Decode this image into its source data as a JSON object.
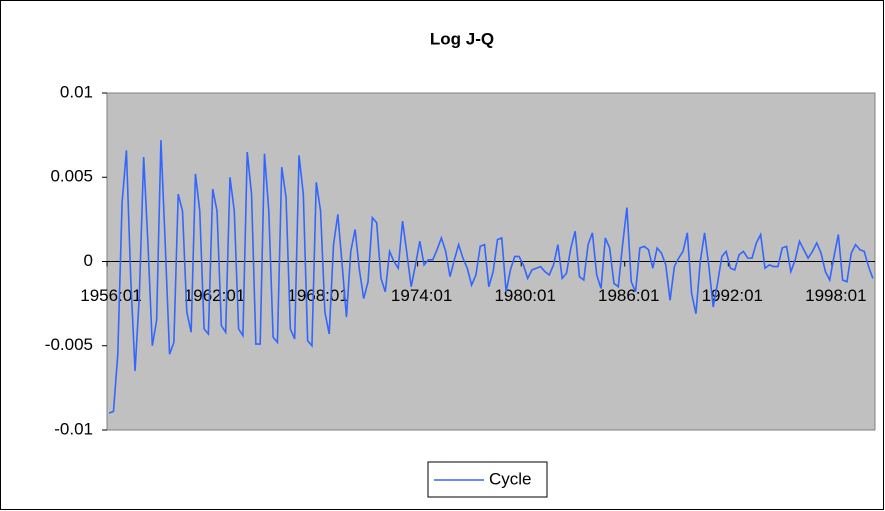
{
  "chart_data": {
    "type": "line",
    "title": "Log J-Q",
    "categories": [
      "1956:01",
      null,
      null,
      null,
      null,
      null,
      null,
      null,
      null,
      null,
      null,
      null,
      null,
      null,
      null,
      null,
      null,
      null,
      null,
      null,
      null,
      null,
      null,
      null,
      "1962:01",
      null,
      null,
      null,
      null,
      null,
      null,
      null,
      null,
      null,
      null,
      null,
      null,
      null,
      null,
      null,
      null,
      null,
      null,
      null,
      null,
      null,
      null,
      null,
      "1968:01",
      null,
      null,
      null,
      null,
      null,
      null,
      null,
      null,
      null,
      null,
      null,
      null,
      null,
      null,
      null,
      null,
      null,
      null,
      null,
      null,
      null,
      null,
      null,
      "1974:01",
      null,
      null,
      null,
      null,
      null,
      null,
      null,
      null,
      null,
      null,
      null,
      null,
      null,
      null,
      null,
      null,
      null,
      null,
      null,
      null,
      null,
      null,
      null,
      "1980:01",
      null,
      null,
      null,
      null,
      null,
      null,
      null,
      null,
      null,
      null,
      null,
      null,
      null,
      null,
      null,
      null,
      null,
      null,
      null,
      null,
      null,
      null,
      null,
      "1986:01",
      null,
      null,
      null,
      null,
      null,
      null,
      null,
      null,
      null,
      null,
      null,
      null,
      null,
      null,
      null,
      null,
      null,
      null,
      null,
      null,
      null,
      null,
      null,
      "1992:01",
      null,
      null,
      null,
      null,
      null,
      null,
      null,
      null,
      null,
      null,
      null,
      null,
      null,
      null,
      null,
      null,
      null,
      null,
      null,
      null,
      null,
      null,
      null,
      "1998:01",
      null,
      null,
      null,
      null,
      null,
      null,
      null,
      null,
      null
    ],
    "series": [
      {
        "name": "Cycle",
        "color": "#3366ff",
        "values": [
          -0.009,
          -0.0089,
          -0.0055,
          0.0035,
          0.0066,
          -0.001,
          -0.0065,
          -0.002,
          0.0062,
          0.001,
          -0.005,
          -0.0035,
          0.0072,
          0.001,
          -0.0055,
          -0.0048,
          0.004,
          0.003,
          -0.003,
          -0.0042,
          0.0052,
          0.003,
          -0.004,
          -0.0043,
          0.0043,
          0.003,
          -0.0038,
          -0.0042,
          0.005,
          0.003,
          -0.004,
          -0.0044,
          0.0065,
          0.004,
          -0.0049,
          -0.0049,
          0.0064,
          0.003,
          -0.0045,
          -0.0048,
          0.0056,
          0.0038,
          -0.004,
          -0.0046,
          0.0063,
          0.004,
          -0.0047,
          -0.005,
          0.0047,
          0.003,
          -0.003,
          -0.0043,
          0.001,
          0.0028,
          -0.0002,
          -0.0033,
          0.0006,
          0.0019,
          -0.0005,
          -0.0022,
          -0.0012,
          0.0026,
          0.0023,
          -0.001,
          -0.0018,
          0.0006,
          0,
          -0.0004,
          0.0024,
          0.0005,
          -0.0015,
          -0.0002,
          0.0012,
          -0.0002,
          0.0001,
          0.0001,
          0.0007,
          0.0014,
          0.0006,
          -0.0009,
          0.0001,
          0.001,
          0.0002,
          -0.0004,
          -0.0014,
          -0.0008,
          0.0009,
          0.001,
          -0.0015,
          -0.0006,
          0.0013,
          0.0014,
          -0.0018,
          -0.0005,
          0.0003,
          0.0003,
          -0.0002,
          -0.001,
          -0.0005,
          -0.0004,
          -0.0003,
          -0.0006,
          -0.0008,
          -0.0002,
          0.001,
          -0.001,
          -0.0007,
          0.0008,
          0.0018,
          -0.0009,
          -0.0011,
          0.001,
          0.0017,
          -0.0008,
          -0.0016,
          0.0014,
          0.0008,
          -0.0013,
          -0.0015,
          0.001,
          0.0032,
          -0.0012,
          -0.0018,
          0.0008,
          0.0009,
          0.0007,
          -0.0004,
          0.0008,
          0.0005,
          -0.0002,
          -0.0023,
          -0.0003,
          0.0002,
          0.0006,
          0.0017,
          -0.0019,
          -0.0031,
          0,
          0.0017,
          -0.0003,
          -0.0027,
          -0.0013,
          0.0003,
          0.0006,
          -0.0004,
          -0.0005,
          0.0004,
          0.0006,
          0.0002,
          0.0002,
          0.0011,
          0.0016,
          -0.0004,
          -0.0002,
          -0.0003,
          -0.0003,
          0.0008,
          0.0009,
          -0.0006,
          0.0001,
          0.0012,
          0.0007,
          0.0002,
          0.0006,
          0.0011,
          0.0005,
          -0.0006,
          -0.0011,
          0.0003,
          0.0016,
          -0.0011,
          -0.0012,
          0.0005,
          0.001,
          0.0007,
          0.0006,
          -0.0003,
          -0.001
        ]
      }
    ],
    "ylim": [
      -0.01,
      0.01
    ],
    "yticks": [
      -0.01,
      -0.005,
      0,
      0.005,
      0.01
    ],
    "grid": false,
    "legend": "bottom",
    "plot_background": "#c0c0c0"
  }
}
